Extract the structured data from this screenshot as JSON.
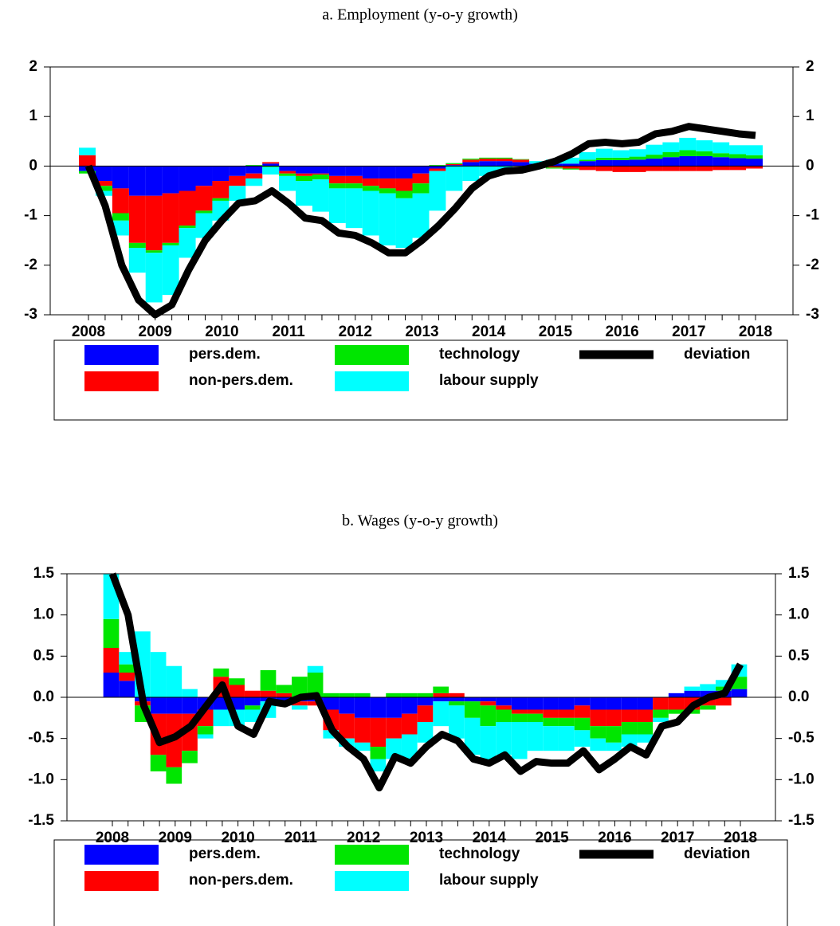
{
  "chart_data": [
    {
      "type": "stacked_bar_line",
      "title": "a.   Employment (y-o-y growth)",
      "categories": [
        "2008",
        null,
        null,
        null,
        "2009",
        null,
        null,
        null,
        "2010",
        null,
        null,
        null,
        "2011",
        null,
        null,
        null,
        "2012",
        null,
        null,
        null,
        "2013",
        null,
        null,
        null,
        "2014",
        null,
        null,
        null,
        "2015",
        null,
        null,
        null,
        "2016",
        null,
        null,
        null,
        "2017",
        null,
        null,
        null,
        "2018"
      ],
      "ylim": [
        -3,
        2
      ],
      "yticks": [
        -3,
        -2,
        -1,
        0,
        1,
        2
      ],
      "series": [
        {
          "name": "pers.dem.",
          "type": "bar",
          "color": "#0000ff",
          "values": [
            -0.1,
            -0.3,
            -0.45,
            -0.6,
            -0.6,
            -0.55,
            -0.5,
            -0.4,
            -0.3,
            -0.2,
            -0.15,
            0.05,
            -0.1,
            -0.15,
            -0.15,
            -0.2,
            -0.2,
            -0.25,
            -0.25,
            -0.25,
            -0.15,
            -0.05,
            0.02,
            0.08,
            0.1,
            0.1,
            0.08,
            0.05,
            0.05,
            0.05,
            0.1,
            0.12,
            0.12,
            0.13,
            0.15,
            0.18,
            0.2,
            0.2,
            0.18,
            0.16,
            0.15
          ]
        },
        {
          "name": "non-pers.dem.",
          "type": "bar",
          "color": "#ff0000",
          "values": [
            0.22,
            -0.1,
            -0.5,
            -0.95,
            -1.1,
            -1.0,
            -0.7,
            -0.5,
            -0.35,
            -0.2,
            -0.1,
            0.03,
            -0.05,
            -0.05,
            -0.02,
            -0.15,
            -0.15,
            -0.15,
            -0.2,
            -0.25,
            -0.2,
            -0.05,
            0.02,
            0.05,
            0.05,
            0.05,
            0.05,
            -0.03,
            -0.03,
            -0.05,
            -0.08,
            -0.1,
            -0.12,
            -0.12,
            -0.1,
            -0.1,
            -0.1,
            -0.1,
            -0.08,
            -0.08,
            -0.05
          ]
        },
        {
          "name": "technology",
          "type": "bar",
          "color": "#00e600",
          "values": [
            -0.05,
            -0.1,
            -0.15,
            -0.1,
            -0.05,
            -0.05,
            -0.05,
            -0.05,
            -0.05,
            0.0,
            0.02,
            -0.02,
            -0.05,
            -0.1,
            -0.1,
            -0.1,
            -0.1,
            -0.1,
            -0.1,
            -0.15,
            -0.2,
            0.02,
            0.02,
            0.02,
            0.02,
            0.02,
            0.01,
            0.0,
            -0.02,
            -0.02,
            0.03,
            0.05,
            0.05,
            0.06,
            0.08,
            0.1,
            0.12,
            0.1,
            0.08,
            0.08,
            0.07
          ]
        },
        {
          "name": "labour supply",
          "type": "bar",
          "color": "#00ffff",
          "values": [
            0.15,
            -0.1,
            -0.3,
            -0.5,
            -1.0,
            -1.0,
            -0.6,
            -0.5,
            -0.4,
            -0.3,
            -0.15,
            -0.15,
            -0.3,
            -0.5,
            -0.65,
            -0.7,
            -0.8,
            -0.9,
            -1.05,
            -1.0,
            -0.9,
            -0.8,
            -0.5,
            -0.3,
            -0.2,
            -0.1,
            0.0,
            0.05,
            0.08,
            0.12,
            0.15,
            0.18,
            0.15,
            0.15,
            0.2,
            0.2,
            0.25,
            0.22,
            0.22,
            0.18,
            0.2
          ]
        },
        {
          "name": "deviation",
          "type": "line",
          "color": "#000000",
          "values": [
            0,
            -0.8,
            -2.0,
            -2.7,
            -3.0,
            -2.8,
            -2.1,
            -1.5,
            -1.1,
            -0.75,
            -0.7,
            -0.5,
            -0.75,
            -1.05,
            -1.1,
            -1.35,
            -1.4,
            -1.55,
            -1.75,
            -1.75,
            -1.5,
            -1.2,
            -0.85,
            -0.45,
            -0.2,
            -0.1,
            -0.08,
            0.0,
            0.1,
            0.25,
            0.45,
            0.48,
            0.45,
            0.48,
            0.65,
            0.7,
            0.8,
            0.75,
            0.7,
            0.65,
            0.62
          ]
        }
      ]
    },
    {
      "type": "stacked_bar_line",
      "title": "b.   Wages (y-o-y growth)",
      "categories": [
        "2008",
        null,
        null,
        null,
        "2009",
        null,
        null,
        null,
        "2010",
        null,
        null,
        null,
        "2011",
        null,
        null,
        null,
        "2012",
        null,
        null,
        null,
        "2013",
        null,
        null,
        null,
        "2014",
        null,
        null,
        null,
        "2015",
        null,
        null,
        null,
        "2016",
        null,
        null,
        null,
        "2017",
        null,
        null,
        null,
        "2018"
      ],
      "ylim": [
        -1.5,
        1.5
      ],
      "yticks": [
        -1.5,
        {
          "value": -1,
          "label": "-1.0"
        },
        -0.5,
        {
          "value": 0,
          "label": "0.0"
        },
        0.5,
        {
          "value": 1,
          "label": "1.0"
        },
        1.5
      ],
      "series": [
        {
          "name": "pers.dem.",
          "type": "bar",
          "color": "#0000ff",
          "values": [
            0.3,
            0.2,
            -0.05,
            -0.2,
            -0.2,
            -0.2,
            -0.15,
            -0.15,
            -0.15,
            -0.1,
            -0.05,
            -0.05,
            -0.05,
            -0.05,
            -0.15,
            -0.2,
            -0.25,
            -0.25,
            -0.25,
            -0.2,
            -0.1,
            -0.05,
            -0.05,
            -0.05,
            -0.05,
            -0.1,
            -0.15,
            -0.15,
            -0.15,
            -0.15,
            -0.1,
            -0.15,
            -0.15,
            -0.15,
            -0.15,
            0.0,
            0.05,
            0.08,
            0.08,
            0.08,
            0.1
          ]
        },
        {
          "name": "non-pers.dem.",
          "type": "bar",
          "color": "#ff0000",
          "values": [
            0.3,
            0.1,
            -0.05,
            -0.5,
            -0.65,
            -0.45,
            -0.2,
            0.25,
            0.15,
            0.08,
            0.08,
            0.05,
            -0.05,
            -0.05,
            -0.25,
            -0.3,
            -0.3,
            -0.35,
            -0.25,
            -0.25,
            -0.2,
            0.05,
            0.05,
            0.0,
            -0.05,
            -0.05,
            -0.05,
            -0.05,
            -0.1,
            -0.1,
            -0.15,
            -0.2,
            -0.2,
            -0.15,
            -0.15,
            -0.15,
            -0.15,
            -0.15,
            -0.1,
            -0.1,
            0
          ]
        },
        {
          "name": "technology",
          "type": "bar",
          "color": "#00e600",
          "values": [
            0.35,
            0.1,
            -0.2,
            -0.2,
            -0.2,
            -0.15,
            -0.1,
            0.1,
            0.08,
            -0.05,
            0.25,
            0.1,
            0.25,
            0.3,
            0.05,
            0.05,
            0.05,
            -0.15,
            0.05,
            0.05,
            0.05,
            0.08,
            -0.05,
            -0.2,
            -0.25,
            -0.15,
            -0.1,
            -0.1,
            -0.1,
            -0.1,
            -0.15,
            -0.15,
            -0.2,
            -0.15,
            -0.15,
            -0.1,
            -0.05,
            -0.05,
            -0.05,
            0.05,
            0.15
          ]
        },
        {
          "name": "labour supply",
          "type": "bar",
          "color": "#00ffff",
          "values": [
            0.55,
            0.15,
            0.8,
            0.55,
            0.38,
            0.1,
            -0.05,
            -0.2,
            -0.2,
            -0.15,
            -0.2,
            -0.05,
            -0.05,
            0.08,
            -0.1,
            -0.1,
            -0.1,
            -0.15,
            -0.25,
            -0.3,
            -0.25,
            -0.3,
            -0.4,
            -0.45,
            -0.45,
            -0.4,
            -0.45,
            -0.35,
            -0.3,
            -0.3,
            -0.2,
            -0.15,
            -0.1,
            -0.15,
            -0.1,
            -0.05,
            0.0,
            0.05,
            0.08,
            0.08,
            0.15
          ]
        },
        {
          "name": "deviation",
          "type": "line",
          "color": "#000000",
          "values": [
            1.5,
            1.0,
            -0.1,
            -0.55,
            -0.48,
            -0.35,
            -0.1,
            0.15,
            -0.35,
            -0.45,
            -0.05,
            -0.08,
            0.0,
            0.02,
            -0.4,
            -0.6,
            -0.75,
            -1.1,
            -0.72,
            -0.8,
            -0.6,
            -0.45,
            -0.53,
            -0.75,
            -0.8,
            -0.7,
            -0.9,
            -0.78,
            -0.8,
            -0.8,
            -0.65,
            -0.88,
            -0.75,
            -0.6,
            -0.7,
            -0.35,
            -0.3,
            -0.1,
            0.0,
            0.05,
            0.4
          ]
        }
      ]
    }
  ]
}
